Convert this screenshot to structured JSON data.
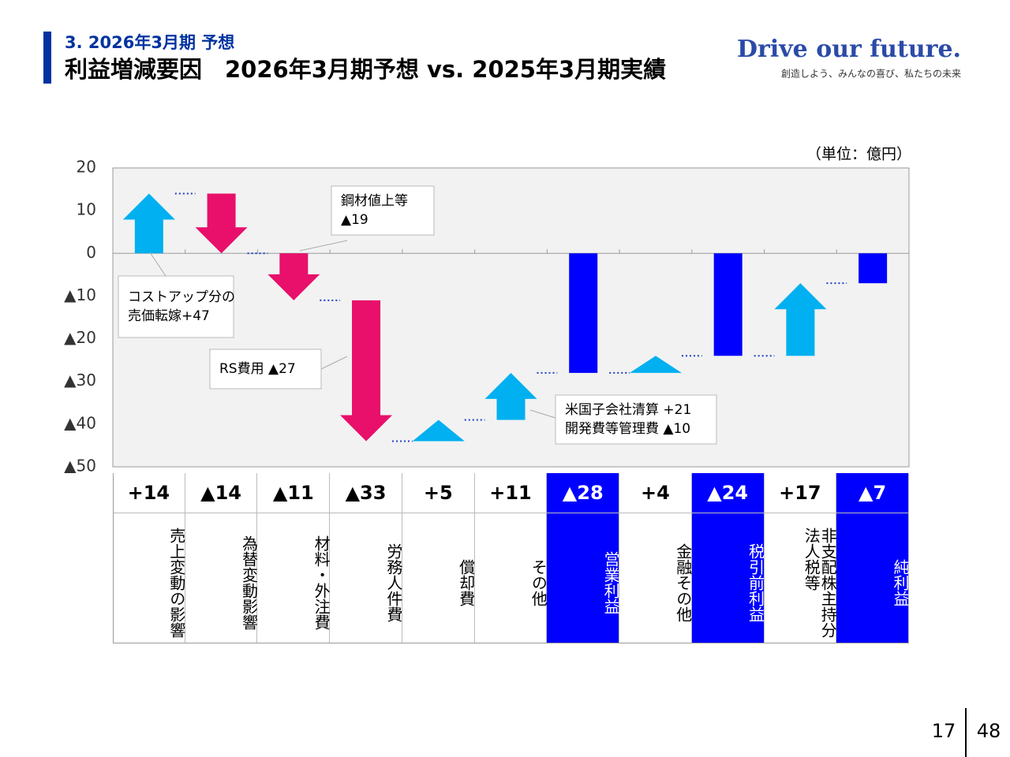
{
  "header": {
    "section": "3.  2026年3月期 予想",
    "title": "利益増減要因　2026年3月期予想 vs. 2025年3月期実績",
    "brand": "Drive our future.",
    "tagline": "創造しよう、みんなの喜び、私たちの未来"
  },
  "chart_data": {
    "type": "waterfall",
    "unit": "（単位：億円）",
    "categories": [
      "売上変動の影響",
      "為替変動影響",
      "材料・外注費",
      "労務人件費",
      "償却費",
      "その他",
      "営業利益",
      "金融その他",
      "税引前利益",
      "非支配株主持分\n法人税等",
      "純利益"
    ],
    "values": [
      14,
      -14,
      -11,
      -33,
      5,
      11,
      -28,
      4,
      -24,
      17,
      -7
    ],
    "value_labels": [
      "+14",
      "▲14",
      "▲11",
      "▲33",
      "+5",
      "+11",
      "▲28",
      "+4",
      "▲24",
      "+17",
      "▲7"
    ],
    "is_total": [
      false,
      false,
      false,
      false,
      false,
      false,
      true,
      false,
      true,
      false,
      true
    ],
    "colors": {
      "increase": "#00b0f0",
      "decrease": "#e8106a",
      "total": "#0000ff"
    },
    "ylim": [
      -50,
      20
    ],
    "yticks": [
      20,
      10,
      0,
      {
        "value": -10,
        "label": "▲10"
      },
      {
        "value": -20,
        "label": "▲20"
      },
      {
        "value": -30,
        "label": "▲30"
      },
      {
        "value": -40,
        "label": "▲40"
      },
      {
        "value": -50,
        "label": "▲50"
      }
    ],
    "annotations": [
      [
        "鋼材値上等",
        "▲19"
      ],
      [
        "コストアップ分の",
        "売価転嫁+47"
      ],
      [
        "RS費用 ▲27"
      ],
      [
        "米国子会社清算 +21",
        "開発費等管理費 ▲10"
      ]
    ]
  },
  "footer": {
    "page": "17",
    "total": "48"
  }
}
